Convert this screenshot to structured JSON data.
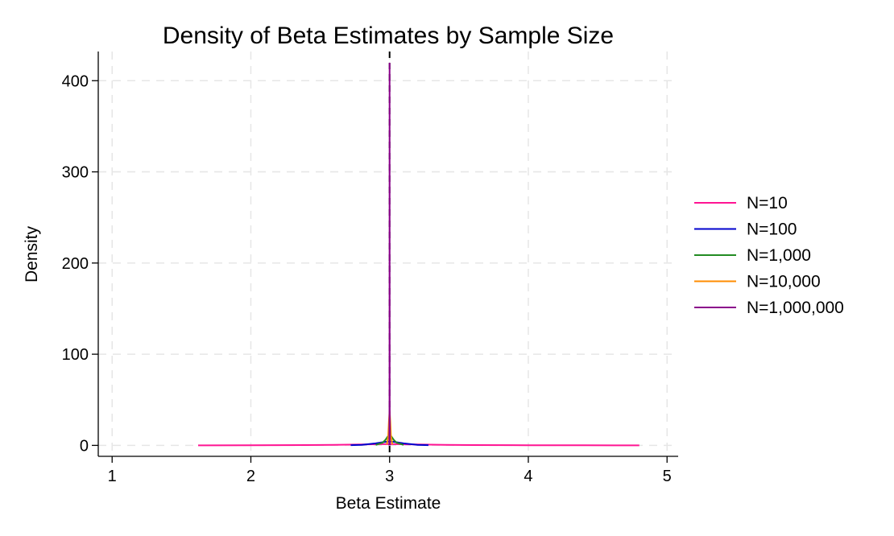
{
  "chart_data": {
    "type": "line",
    "title": "Density of Beta Estimates by Sample Size",
    "xlabel": "Beta Estimate",
    "ylabel": "Density",
    "xlim": [
      0.9,
      5.08
    ],
    "ylim": [
      -12,
      432
    ],
    "x_ticks": [
      1,
      2,
      3,
      4,
      5
    ],
    "y_ticks": [
      0,
      100,
      200,
      300,
      400
    ],
    "grid": true,
    "legend_position": "right",
    "reference_line": {
      "x": 3,
      "style": "dashed",
      "color": "#000000"
    },
    "series": [
      {
        "name": "N=10",
        "color": "#ff1493",
        "x": [
          1.62,
          2.0,
          2.4,
          2.6,
          2.8,
          2.9,
          2.95,
          3.0,
          3.05,
          3.1,
          3.2,
          3.4,
          3.6,
          4.0,
          4.4,
          4.8
        ],
        "y": [
          0.05,
          0.15,
          0.35,
          0.6,
          1.0,
          1.25,
          1.35,
          1.4,
          1.35,
          1.25,
          1.0,
          0.6,
          0.35,
          0.15,
          0.08,
          0.05
        ]
      },
      {
        "name": "N=100",
        "color": "#0000cd",
        "x": [
          2.72,
          2.8,
          2.9,
          2.95,
          2.98,
          3.0,
          3.02,
          3.05,
          3.1,
          3.2,
          3.28
        ],
        "y": [
          0.2,
          0.6,
          2.2,
          3.5,
          4.0,
          4.2,
          4.0,
          3.5,
          2.2,
          0.6,
          0.2
        ]
      },
      {
        "name": "N=1,000",
        "color": "#228b22",
        "x": [
          2.9,
          2.95,
          2.97,
          2.99,
          3.0,
          3.01,
          3.03,
          3.05,
          3.1
        ],
        "y": [
          0.5,
          3.0,
          6.0,
          10.5,
          12.0,
          10.5,
          6.0,
          3.0,
          0.5
        ]
      },
      {
        "name": "N=10,000",
        "color": "#ff8c00",
        "x": [
          2.98,
          2.99,
          2.995,
          3.0,
          3.005,
          3.01,
          3.02
        ],
        "y": [
          1.0,
          10.0,
          26.0,
          38.0,
          26.0,
          10.0,
          1.0
        ]
      },
      {
        "name": "N=1,000,000",
        "color": "#8b008b",
        "x": [
          2.998,
          2.9993,
          2.9997,
          3.0,
          3.0003,
          3.0007,
          3.002
        ],
        "y": [
          0.0,
          50.0,
          280.0,
          419.0,
          280.0,
          50.0,
          0.0
        ]
      }
    ]
  }
}
